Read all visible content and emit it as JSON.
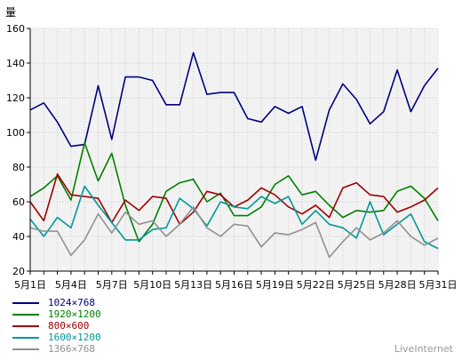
{
  "chart_data": {
    "type": "line",
    "ylabel": "量",
    "ylim": [
      20,
      160
    ],
    "yticks": [
      20,
      40,
      60,
      80,
      100,
      120,
      140,
      160
    ],
    "grid": true,
    "legend_position": "bottom-left",
    "x": [
      "5月1日",
      "5月2日",
      "5月3日",
      "5月4日",
      "5月5日",
      "5月6日",
      "5月7日",
      "5月8日",
      "5月9日",
      "5月10日",
      "5月11日",
      "5月12日",
      "5月13日",
      "5月14日",
      "5月15日",
      "5月16日",
      "5月17日",
      "5月18日",
      "5月19日",
      "5月20日",
      "5月21日",
      "5月22日",
      "5月23日",
      "5月24日",
      "5月25日",
      "5月26日",
      "5月27日",
      "5月28日",
      "5月29日",
      "5月30日",
      "5月31日"
    ],
    "xticklabels": [
      "5月1日",
      "5月4日",
      "5月7日",
      "5月10日",
      "5月13日",
      "5月16日",
      "5月19日",
      "5月22日",
      "5月25日",
      "5月28日",
      "5月31日"
    ],
    "series": [
      {
        "name": "1024×768",
        "color": "#000080",
        "values": [
          113,
          117,
          106,
          92,
          93,
          127,
          96,
          132,
          132,
          130,
          116,
          116,
          146,
          122,
          123,
          123,
          108,
          106,
          115,
          111,
          115,
          84,
          113,
          128,
          119,
          105,
          112,
          136,
          112,
          127,
          137
        ]
      },
      {
        "name": "1920×1200",
        "color": "#008000",
        "values": [
          63,
          68,
          75,
          61,
          94,
          72,
          88,
          58,
          37,
          47,
          66,
          71,
          73,
          60,
          65,
          52,
          52,
          57,
          70,
          75,
          64,
          66,
          58,
          51,
          55,
          54,
          55,
          66,
          69,
          62,
          49
        ]
      },
      {
        "name": "800×600",
        "color": "#a00000",
        "values": [
          60,
          49,
          76,
          64,
          63,
          62,
          48,
          61,
          55,
          63,
          62,
          47,
          54,
          66,
          64,
          57,
          61,
          68,
          64,
          57,
          53,
          58,
          51,
          68,
          71,
          64,
          63,
          54,
          57,
          61,
          68
        ]
      },
      {
        "name": "1600×1200",
        "color": "#009999",
        "values": [
          50,
          40,
          51,
          45,
          69,
          58,
          48,
          38,
          38,
          44,
          45,
          62,
          56,
          46,
          60,
          57,
          56,
          63,
          59,
          63,
          47,
          55,
          47,
          45,
          39,
          60,
          41,
          47,
          53,
          37,
          33
        ]
      },
      {
        "name": "1366×768",
        "color": "#909090",
        "values": [
          45,
          43,
          43,
          29,
          38,
          53,
          42,
          54,
          47,
          49,
          40,
          47,
          57,
          45,
          40,
          47,
          46,
          34,
          42,
          41,
          44,
          48,
          28,
          37,
          45,
          38,
          42,
          49,
          40,
          35,
          39
        ]
      }
    ]
  },
  "brand": "LiveInternet"
}
